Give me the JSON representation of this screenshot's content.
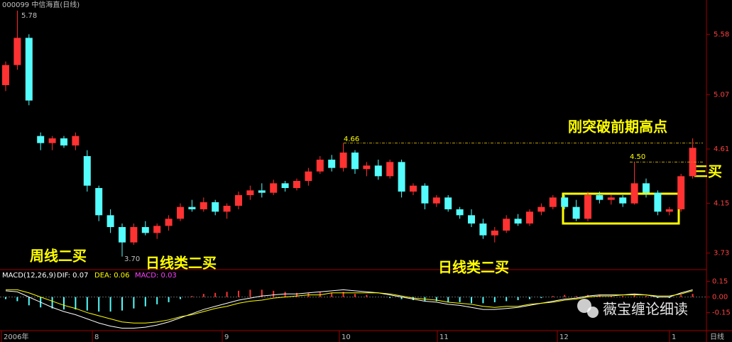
{
  "chart_data": {
    "type": "candlestick",
    "title": "000099 中信海直(日线)",
    "up_color": "#ff3232",
    "down_color": "#54fcfc",
    "open": [
      5.15,
      5.32,
      5.55,
      4.72,
      4.66,
      4.7,
      4.64,
      4.55,
      4.28,
      4.05,
      3.95,
      3.82,
      3.95,
      3.9,
      3.96,
      4.02,
      4.12,
      4.1,
      4.16,
      4.08,
      4.13,
      4.22,
      4.26,
      4.24,
      4.32,
      4.28,
      4.34,
      4.42,
      4.52,
      4.45,
      4.58,
      4.44,
      4.47,
      4.38,
      4.5,
      4.25,
      4.3,
      4.15,
      4.2,
      4.1,
      4.05,
      3.98,
      3.88,
      3.92,
      4.02,
      3.98,
      4.08,
      4.12,
      4.2,
      4.12,
      4.02,
      4.22,
      4.18,
      4.2,
      4.15,
      4.32,
      4.24,
      4.08,
      4.1,
      4.38
    ],
    "high": [
      5.35,
      5.78,
      5.58,
      4.75,
      4.72,
      4.72,
      4.75,
      4.6,
      4.3,
      4.1,
      3.98,
      3.98,
      4.0,
      3.98,
      4.05,
      4.15,
      4.18,
      4.2,
      4.18,
      4.15,
      4.25,
      4.3,
      4.32,
      4.35,
      4.34,
      4.36,
      4.45,
      4.55,
      4.56,
      4.66,
      4.6,
      4.5,
      4.52,
      4.52,
      4.52,
      4.32,
      4.32,
      4.22,
      4.22,
      4.12,
      4.1,
      4.02,
      3.95,
      4.05,
      4.06,
      4.1,
      4.15,
      4.22,
      4.22,
      4.18,
      4.25,
      4.25,
      4.22,
      4.22,
      4.5,
      4.36,
      4.26,
      4.12,
      4.4,
      4.7
    ],
    "low": [
      5.1,
      5.28,
      4.98,
      4.6,
      4.6,
      4.62,
      4.6,
      4.25,
      4.0,
      3.9,
      3.7,
      3.8,
      3.88,
      3.85,
      3.92,
      4.0,
      4.08,
      4.08,
      4.05,
      4.02,
      4.1,
      4.18,
      4.2,
      4.22,
      4.25,
      4.26,
      4.3,
      4.4,
      4.42,
      4.42,
      4.4,
      4.38,
      4.35,
      4.36,
      4.2,
      4.22,
      4.1,
      4.12,
      4.08,
      4.02,
      3.95,
      3.85,
      3.82,
      3.9,
      3.96,
      3.96,
      4.05,
      4.1,
      4.1,
      4.0,
      4.0,
      4.15,
      4.14,
      4.12,
      4.14,
      4.2,
      4.05,
      4.05,
      4.08,
      4.36
    ],
    "close": [
      5.32,
      5.55,
      5.02,
      4.66,
      4.7,
      4.64,
      4.72,
      4.3,
      4.05,
      3.95,
      3.82,
      3.95,
      3.9,
      3.96,
      4.02,
      4.12,
      4.1,
      4.16,
      4.08,
      4.13,
      4.22,
      4.26,
      4.24,
      4.32,
      4.28,
      4.34,
      4.42,
      4.52,
      4.45,
      4.58,
      4.44,
      4.47,
      4.38,
      4.5,
      4.25,
      4.3,
      4.15,
      4.2,
      4.1,
      4.05,
      3.98,
      3.88,
      3.92,
      4.02,
      3.98,
      4.08,
      4.12,
      4.2,
      4.12,
      4.02,
      4.22,
      4.18,
      4.2,
      4.15,
      4.32,
      4.24,
      4.08,
      4.1,
      4.38,
      4.62
    ],
    "ylim": [
      3.59,
      5.87
    ],
    "yticks": [
      5.58,
      5.07,
      4.61,
      4.15,
      3.73
    ],
    "price_labels": [
      5.78,
      {
        "value": 3.7,
        "label": "3.70"
      },
      4.66,
      {
        "value": 4.5,
        "label": "4.50"
      }
    ],
    "x_labels": [
      "2006年",
      "8",
      "9",
      "10",
      "11",
      "12",
      "1"
    ],
    "period_label": "日线",
    "macd_header": {
      "name": "MACD(12,26,9)",
      "dif": "DIF: 0.07",
      "dea": "DEA: 0.06",
      "macd": "MACD: 0.03"
    },
    "macd": [
      -0.02,
      -0.04,
      -0.08,
      -0.1,
      -0.11,
      -0.12,
      -0.12,
      -0.13,
      -0.14,
      -0.14,
      -0.13,
      -0.11,
      -0.09,
      -0.07,
      -0.05,
      -0.02,
      0.01,
      0.03,
      0.04,
      0.05,
      0.06,
      0.07,
      0.07,
      0.06,
      0.05,
      0.04,
      0.04,
      0.05,
      0.04,
      0.05,
      0.03,
      0.02,
      0,
      -0.01,
      -0.02,
      -0.03,
      -0.04,
      -0.04,
      -0.05,
      -0.05,
      -0.06,
      -0.06,
      -0.05,
      -0.04,
      -0.03,
      -0.02,
      -0.01,
      0.01,
      0.02,
      0.01,
      0.02,
      0.02,
      0.01,
      0.01,
      0.02,
      0.01,
      -0.01,
      -0.01,
      0.02,
      0.03
    ],
    "dif": [
      0.06,
      0.05,
      0,
      -0.05,
      -0.1,
      -0.14,
      -0.17,
      -0.21,
      -0.25,
      -0.28,
      -0.3,
      -0.3,
      -0.29,
      -0.27,
      -0.24,
      -0.2,
      -0.16,
      -0.12,
      -0.09,
      -0.06,
      -0.03,
      -0.01,
      0.01,
      0.02,
      0.03,
      0.03,
      0.04,
      0.05,
      0.06,
      0.07,
      0.06,
      0.05,
      0.04,
      0.02,
      0,
      -0.02,
      -0.04,
      -0.05,
      -0.07,
      -0.08,
      -0.1,
      -0.12,
      -0.12,
      -0.11,
      -0.1,
      -0.08,
      -0.06,
      -0.04,
      -0.02,
      -0.01,
      0.01,
      0.02,
      0.02,
      0.02,
      0.03,
      0.02,
      0,
      0,
      0.04,
      0.07
    ],
    "dea": [
      0.07,
      0.07,
      0.04,
      0,
      -0.04,
      -0.08,
      -0.11,
      -0.15,
      -0.18,
      -0.21,
      -0.24,
      -0.25,
      -0.25,
      -0.24,
      -0.22,
      -0.19,
      -0.17,
      -0.14,
      -0.11,
      -0.09,
      -0.06,
      -0.04,
      -0.03,
      -0.01,
      0,
      0.01,
      0.02,
      0.02,
      0.04,
      0.04,
      0.04,
      0.04,
      0.04,
      0.03,
      0.01,
      -0.01,
      -0.02,
      -0.03,
      -0.05,
      -0.06,
      -0.07,
      -0.09,
      -0.1,
      -0.09,
      -0.09,
      -0.07,
      -0.06,
      -0.05,
      -0.03,
      -0.02,
      0,
      0.01,
      0.01,
      0.02,
      0.02,
      0.02,
      0.01,
      0.01,
      0.03,
      0.06
    ],
    "dif_color": "#ffffff",
    "dea_color": "#ffff00",
    "y2lim": [
      -0.31,
      0.25
    ],
    "y2ticks": [
      0.15,
      {
        "value": 0,
        "label": "0.00"
      },
      -0.15
    ],
    "annotations": [
      "周线二买",
      "日线类二买",
      "日线类二买",
      "刚突破前期高点",
      "三买"
    ],
    "watermark": "薇宝缠论细读"
  }
}
